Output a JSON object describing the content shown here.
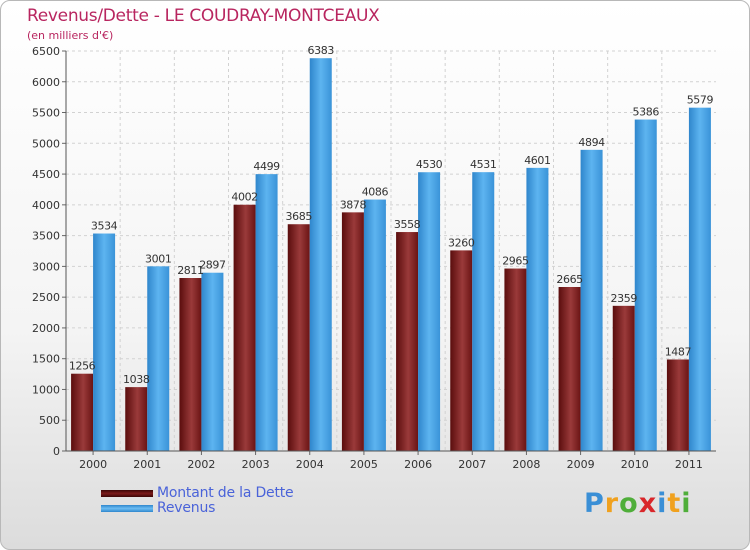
{
  "title": "Revenus/Dette - LE COUDRAY-MONTCEAUX",
  "subtitle": "(en milliers d'€)",
  "brand": "Proxiti",
  "brand_letters": [
    "P",
    "r",
    "o",
    "x",
    "i",
    "t",
    "i"
  ],
  "brand_colors": [
    "#3a8fd6",
    "#f0a11e",
    "#4fae3a",
    "#d9262a",
    "#3a8fd6",
    "#f0a11e",
    "#4fae3a"
  ],
  "chart_data": {
    "type": "bar",
    "title": "Revenus/Dette - LE COUDRAY-MONTCEAUX",
    "subtitle": "(en milliers d'€)",
    "xlabel": "",
    "ylabel": "",
    "ylim": [
      0,
      6500
    ],
    "yticks": [
      0,
      500,
      1000,
      1500,
      2000,
      2500,
      3000,
      3500,
      4000,
      4500,
      5000,
      5500,
      6000,
      6500
    ],
    "grid": true,
    "legend_position": "bottom-left",
    "categories": [
      "2000",
      "2001",
      "2002",
      "2003",
      "2004",
      "2005",
      "2006",
      "2007",
      "2008",
      "2009",
      "2010",
      "2011"
    ],
    "series": [
      {
        "name": "Montant de la Dette",
        "color": "#7a1a1a",
        "values": [
          1256,
          1038,
          2811,
          4002,
          3685,
          3878,
          3558,
          3260,
          2965,
          2665,
          2359,
          1487
        ],
        "labels": [
          "1256",
          "1038",
          "2811",
          "4002",
          "3685",
          "3878",
          "3558",
          "3260",
          "2965",
          "2665",
          "2359",
          "1487"
        ]
      },
      {
        "name": "Revenus",
        "color": "#4aa3e6",
        "values": [
          3534,
          3001,
          2897,
          4499,
          6383,
          4086,
          4530,
          4531,
          4601,
          4894,
          5386,
          5579
        ],
        "labels": [
          "3534",
          "3001",
          "2897",
          "4499",
          "6383",
          "4086",
          "4530",
          "4531",
          "4601",
          "4894",
          "5386",
          "5579"
        ]
      }
    ]
  }
}
